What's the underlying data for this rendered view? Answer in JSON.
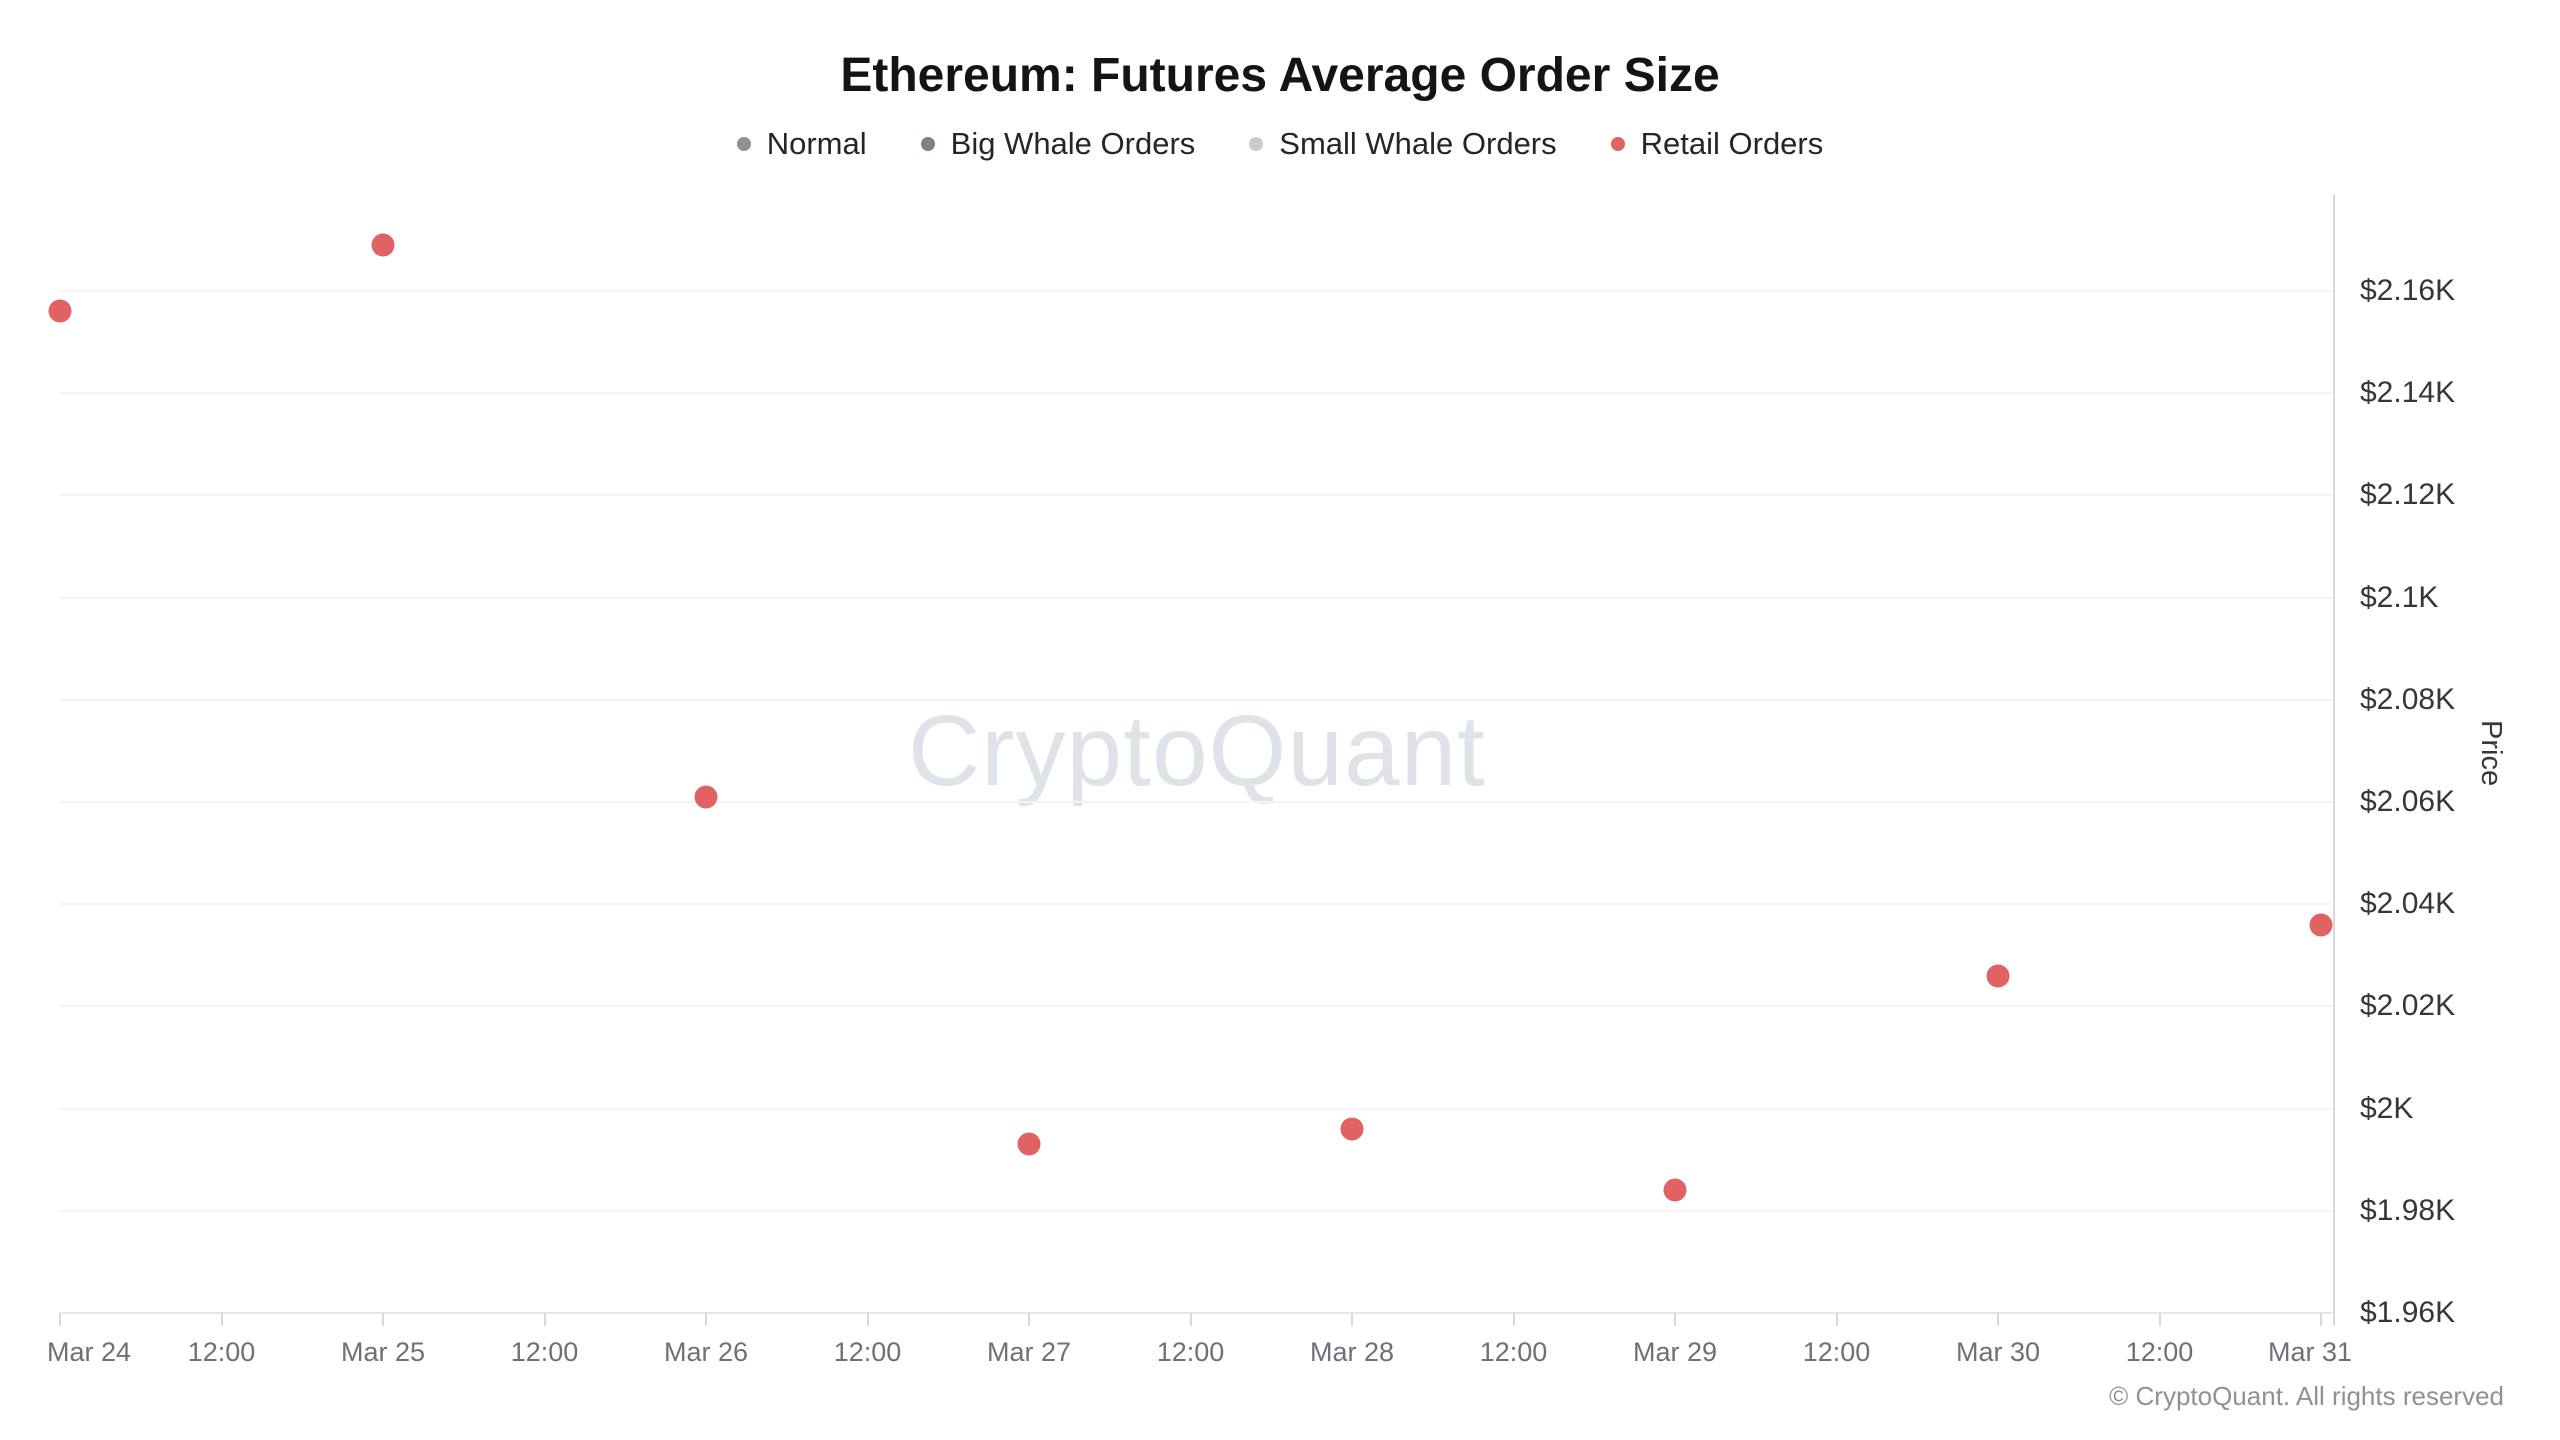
{
  "title": "Ethereum: Futures Average Order Size",
  "watermark": "CryptoQuant",
  "legend": {
    "items": [
      {
        "label": "Normal",
        "color": "#909098"
      },
      {
        "label": "Big Whale Orders",
        "color": "#7f7f88"
      },
      {
        "label": "Small Whale Orders",
        "color": "#c9c9d1"
      },
      {
        "label": "Retail Orders",
        "color": "#e06262"
      }
    ]
  },
  "y_axis": {
    "label": "Price",
    "ticks": [
      {
        "usd": 2160,
        "label": "$2.16K"
      },
      {
        "usd": 2140,
        "label": "$2.14K"
      },
      {
        "usd": 2120,
        "label": "$2.12K"
      },
      {
        "usd": 2100,
        "label": "$2.1K"
      },
      {
        "usd": 2080,
        "label": "$2.08K"
      },
      {
        "usd": 2060,
        "label": "$2.06K"
      },
      {
        "usd": 2040,
        "label": "$2.04K"
      },
      {
        "usd": 2020,
        "label": "$2.02K"
      },
      {
        "usd": 2000,
        "label": "$2K"
      },
      {
        "usd": 1980,
        "label": "$1.98K"
      },
      {
        "usd": 1960,
        "label": "$1.96K"
      }
    ]
  },
  "x_axis": {
    "ticks": [
      "Mar 24",
      "12:00",
      "Mar 25",
      "12:00",
      "Mar 26",
      "12:00",
      "Mar 27",
      "12:00",
      "Mar 28",
      "12:00",
      "Mar 29",
      "12:00",
      "Mar 30",
      "12:00",
      "Mar 31"
    ]
  },
  "footer": {
    "copyright": "© CryptoQuant. All rights reserved"
  },
  "chart_data": {
    "type": "scatter",
    "title": "Ethereum: Futures Average Order Size",
    "xlabel": "",
    "ylabel": "Price",
    "x": [
      "Mar 24",
      "Mar 25",
      "Mar 26",
      "Mar 27",
      "Mar 28",
      "Mar 29",
      "Mar 30",
      "Mar 31"
    ],
    "series": [
      {
        "name": "Normal",
        "color": "#909098",
        "points": []
      },
      {
        "name": "Big Whale Orders",
        "color": "#7f7f88",
        "points": []
      },
      {
        "name": "Small Whale Orders",
        "color": "#c9c9d1",
        "points": []
      },
      {
        "name": "Retail Orders",
        "color": "#e06262",
        "points": [
          {
            "date": "Mar 24",
            "price_usd": 2156
          },
          {
            "date": "Mar 25",
            "price_usd": 2169
          },
          {
            "date": "Mar 26",
            "price_usd": 2061
          },
          {
            "date": "Mar 27",
            "price_usd": 1993
          },
          {
            "date": "Mar 28",
            "price_usd": 1996
          },
          {
            "date": "Mar 29",
            "price_usd": 1984
          },
          {
            "date": "Mar 30",
            "price_usd": 2026
          },
          {
            "date": "Mar 31",
            "price_usd": 2036
          }
        ]
      }
    ],
    "ylim_usd": [
      1958,
      2174
    ],
    "y_gridlines_usd": [
      1960,
      1980,
      2000,
      2020,
      2040,
      2060,
      2080,
      2100,
      2120,
      2140,
      2160
    ],
    "x_tick_labels": [
      "Mar 24",
      "12:00",
      "Mar 25",
      "12:00",
      "Mar 26",
      "12:00",
      "Mar 27",
      "12:00",
      "Mar 28",
      "12:00",
      "Mar 29",
      "12:00",
      "Mar 30",
      "12:00",
      "Mar 31"
    ],
    "legend_position": "top",
    "grid": "horizontal-only"
  }
}
